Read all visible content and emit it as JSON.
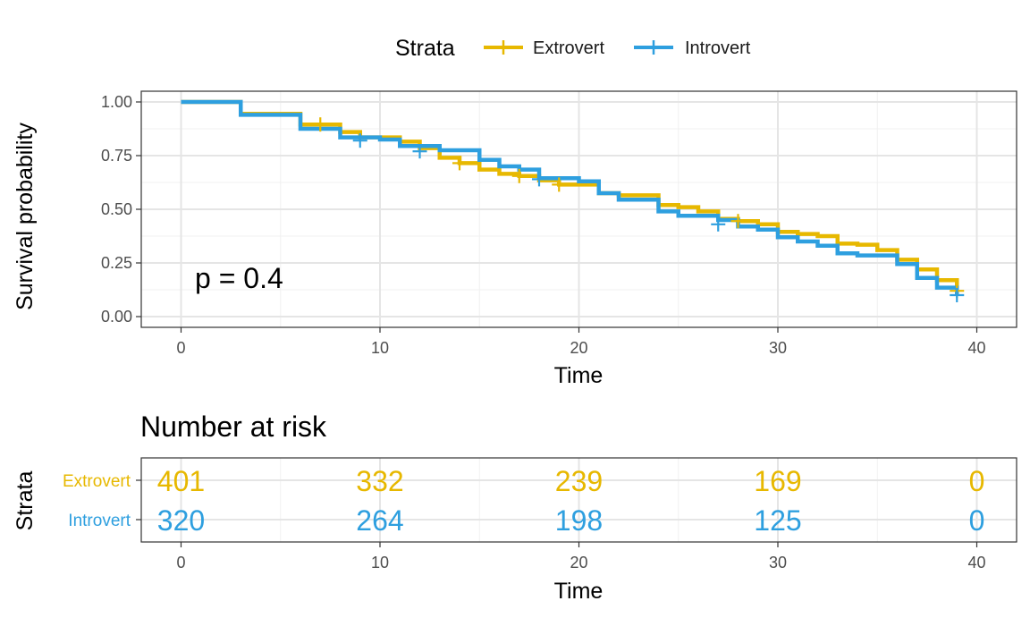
{
  "legend": {
    "title": "Strata",
    "entries": [
      {
        "label": "Extrovert",
        "color": "#E7B800"
      },
      {
        "label": "Introvert",
        "color": "#2E9FDF"
      }
    ]
  },
  "chart_data": [
    {
      "type": "line",
      "subtype": "kaplan-meier step",
      "xlabel": "Time",
      "ylabel": "Survival probability",
      "xlim": [
        -2,
        42
      ],
      "ylim": [
        -0.05,
        1.05
      ],
      "x_ticks": [
        "0",
        "10",
        "20",
        "30",
        "40"
      ],
      "y_ticks": [
        "0.00",
        "0.25",
        "0.50",
        "0.75",
        "1.00"
      ],
      "annotation": "p = 0.4",
      "grid": true,
      "legend_position": "top",
      "series": [
        {
          "name": "Extrovert",
          "color": "#E7B800",
          "steps": [
            [
              0,
              1.0
            ],
            [
              3,
              0.945
            ],
            [
              6,
              0.895
            ],
            [
              8,
              0.86
            ],
            [
              9,
              0.835
            ],
            [
              11,
              0.815
            ],
            [
              12,
              0.785
            ],
            [
              13,
              0.74
            ],
            [
              14,
              0.715
            ],
            [
              15,
              0.685
            ],
            [
              16,
              0.665
            ],
            [
              17,
              0.655
            ],
            [
              18,
              0.635
            ],
            [
              19,
              0.615
            ],
            [
              21,
              0.575
            ],
            [
              22,
              0.565
            ],
            [
              24,
              0.52
            ],
            [
              25,
              0.51
            ],
            [
              26,
              0.49
            ],
            [
              27,
              0.455
            ],
            [
              28,
              0.445
            ],
            [
              29,
              0.43
            ],
            [
              30,
              0.395
            ],
            [
              31,
              0.385
            ],
            [
              32,
              0.375
            ],
            [
              33,
              0.34
            ],
            [
              34,
              0.335
            ],
            [
              35,
              0.31
            ],
            [
              36,
              0.265
            ],
            [
              37,
              0.22
            ],
            [
              38,
              0.17
            ],
            [
              39,
              0.13
            ]
          ],
          "censored": [
            [
              7,
              0.895
            ],
            [
              14,
              0.715
            ],
            [
              17,
              0.655
            ],
            [
              19,
              0.615
            ],
            [
              28,
              0.445
            ],
            [
              39,
              0.12
            ]
          ]
        },
        {
          "name": "Introvert",
          "color": "#2E9FDF",
          "steps": [
            [
              0,
              1.0
            ],
            [
              3,
              0.94
            ],
            [
              6,
              0.875
            ],
            [
              8,
              0.835
            ],
            [
              10,
              0.825
            ],
            [
              11,
              0.795
            ],
            [
              13,
              0.775
            ],
            [
              15,
              0.73
            ],
            [
              16,
              0.7
            ],
            [
              17,
              0.685
            ],
            [
              18,
              0.645
            ],
            [
              20,
              0.63
            ],
            [
              21,
              0.575
            ],
            [
              22,
              0.545
            ],
            [
              24,
              0.49
            ],
            [
              25,
              0.47
            ],
            [
              27,
              0.45
            ],
            [
              28,
              0.42
            ],
            [
              29,
              0.405
            ],
            [
              30,
              0.37
            ],
            [
              31,
              0.35
            ],
            [
              32,
              0.33
            ],
            [
              33,
              0.295
            ],
            [
              34,
              0.285
            ],
            [
              36,
              0.245
            ],
            [
              37,
              0.18
            ],
            [
              38,
              0.135
            ],
            [
              39,
              0.1
            ]
          ],
          "censored": [
            [
              9,
              0.82
            ],
            [
              12,
              0.77
            ],
            [
              18,
              0.64
            ],
            [
              27,
              0.43
            ],
            [
              39,
              0.1
            ]
          ]
        }
      ]
    },
    {
      "type": "table",
      "title": "Number at risk",
      "xlabel": "Time",
      "ylabel": "Strata",
      "x_ticks": [
        "0",
        "10",
        "20",
        "30",
        "40"
      ],
      "times": [
        0,
        10,
        20,
        30,
        40
      ],
      "rows": [
        {
          "name": "Extrovert",
          "color": "#E7B800",
          "values": [
            "401",
            "332",
            "239",
            "169",
            "0"
          ]
        },
        {
          "name": "Introvert",
          "color": "#2E9FDF",
          "values": [
            "320",
            "264",
            "198",
            "125",
            "0"
          ]
        }
      ]
    }
  ]
}
